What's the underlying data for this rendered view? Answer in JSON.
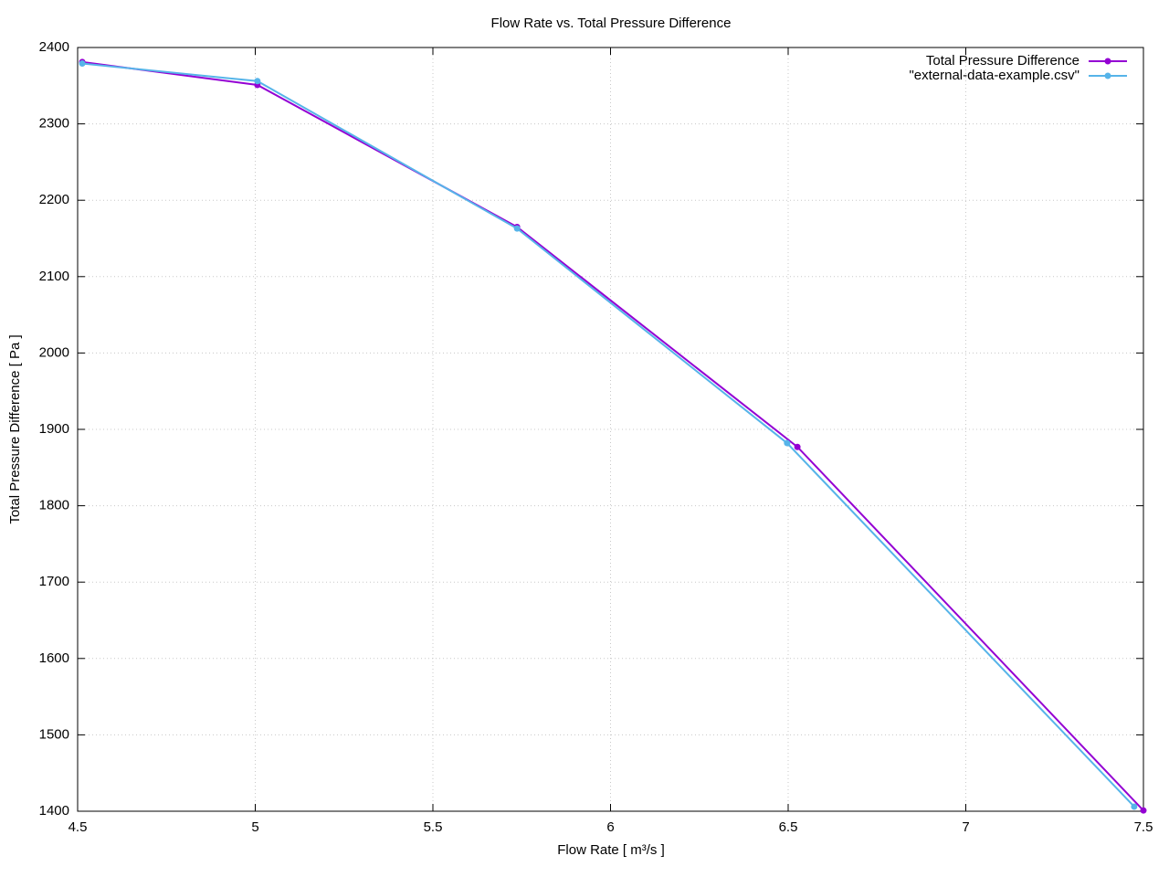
{
  "chart_data": {
    "type": "line",
    "title": "Flow Rate vs. Total Pressure Difference",
    "xlabel": "Flow Rate [ m³/s ]",
    "ylabel": "Total Pressure Difference [ Pa ]",
    "xlim": [
      4.5,
      7.5
    ],
    "xticks": [
      4.5,
      5,
      5.5,
      6,
      6.5,
      7,
      7.5
    ],
    "ylim": [
      1400,
      2400
    ],
    "yticks": [
      1400,
      1500,
      1600,
      1700,
      1800,
      1900,
      2000,
      2100,
      2200,
      2300,
      2400
    ],
    "grid": true,
    "legend": "top-right",
    "series": [
      {
        "name": "Total Pressure Difference",
        "color": "#9400d3",
        "x": [
          4.513,
          5.006,
          5.737,
          6.526,
          7.5
        ],
        "values": [
          2381,
          2351,
          2165,
          1877,
          1401
        ]
      },
      {
        "name": "\"external-data-example.csv\"",
        "color": "#56b4e9",
        "x": [
          4.513,
          5.006,
          5.737,
          6.497,
          7.474
        ],
        "values": [
          2379,
          2356,
          2163,
          1882,
          1406
        ]
      }
    ]
  }
}
